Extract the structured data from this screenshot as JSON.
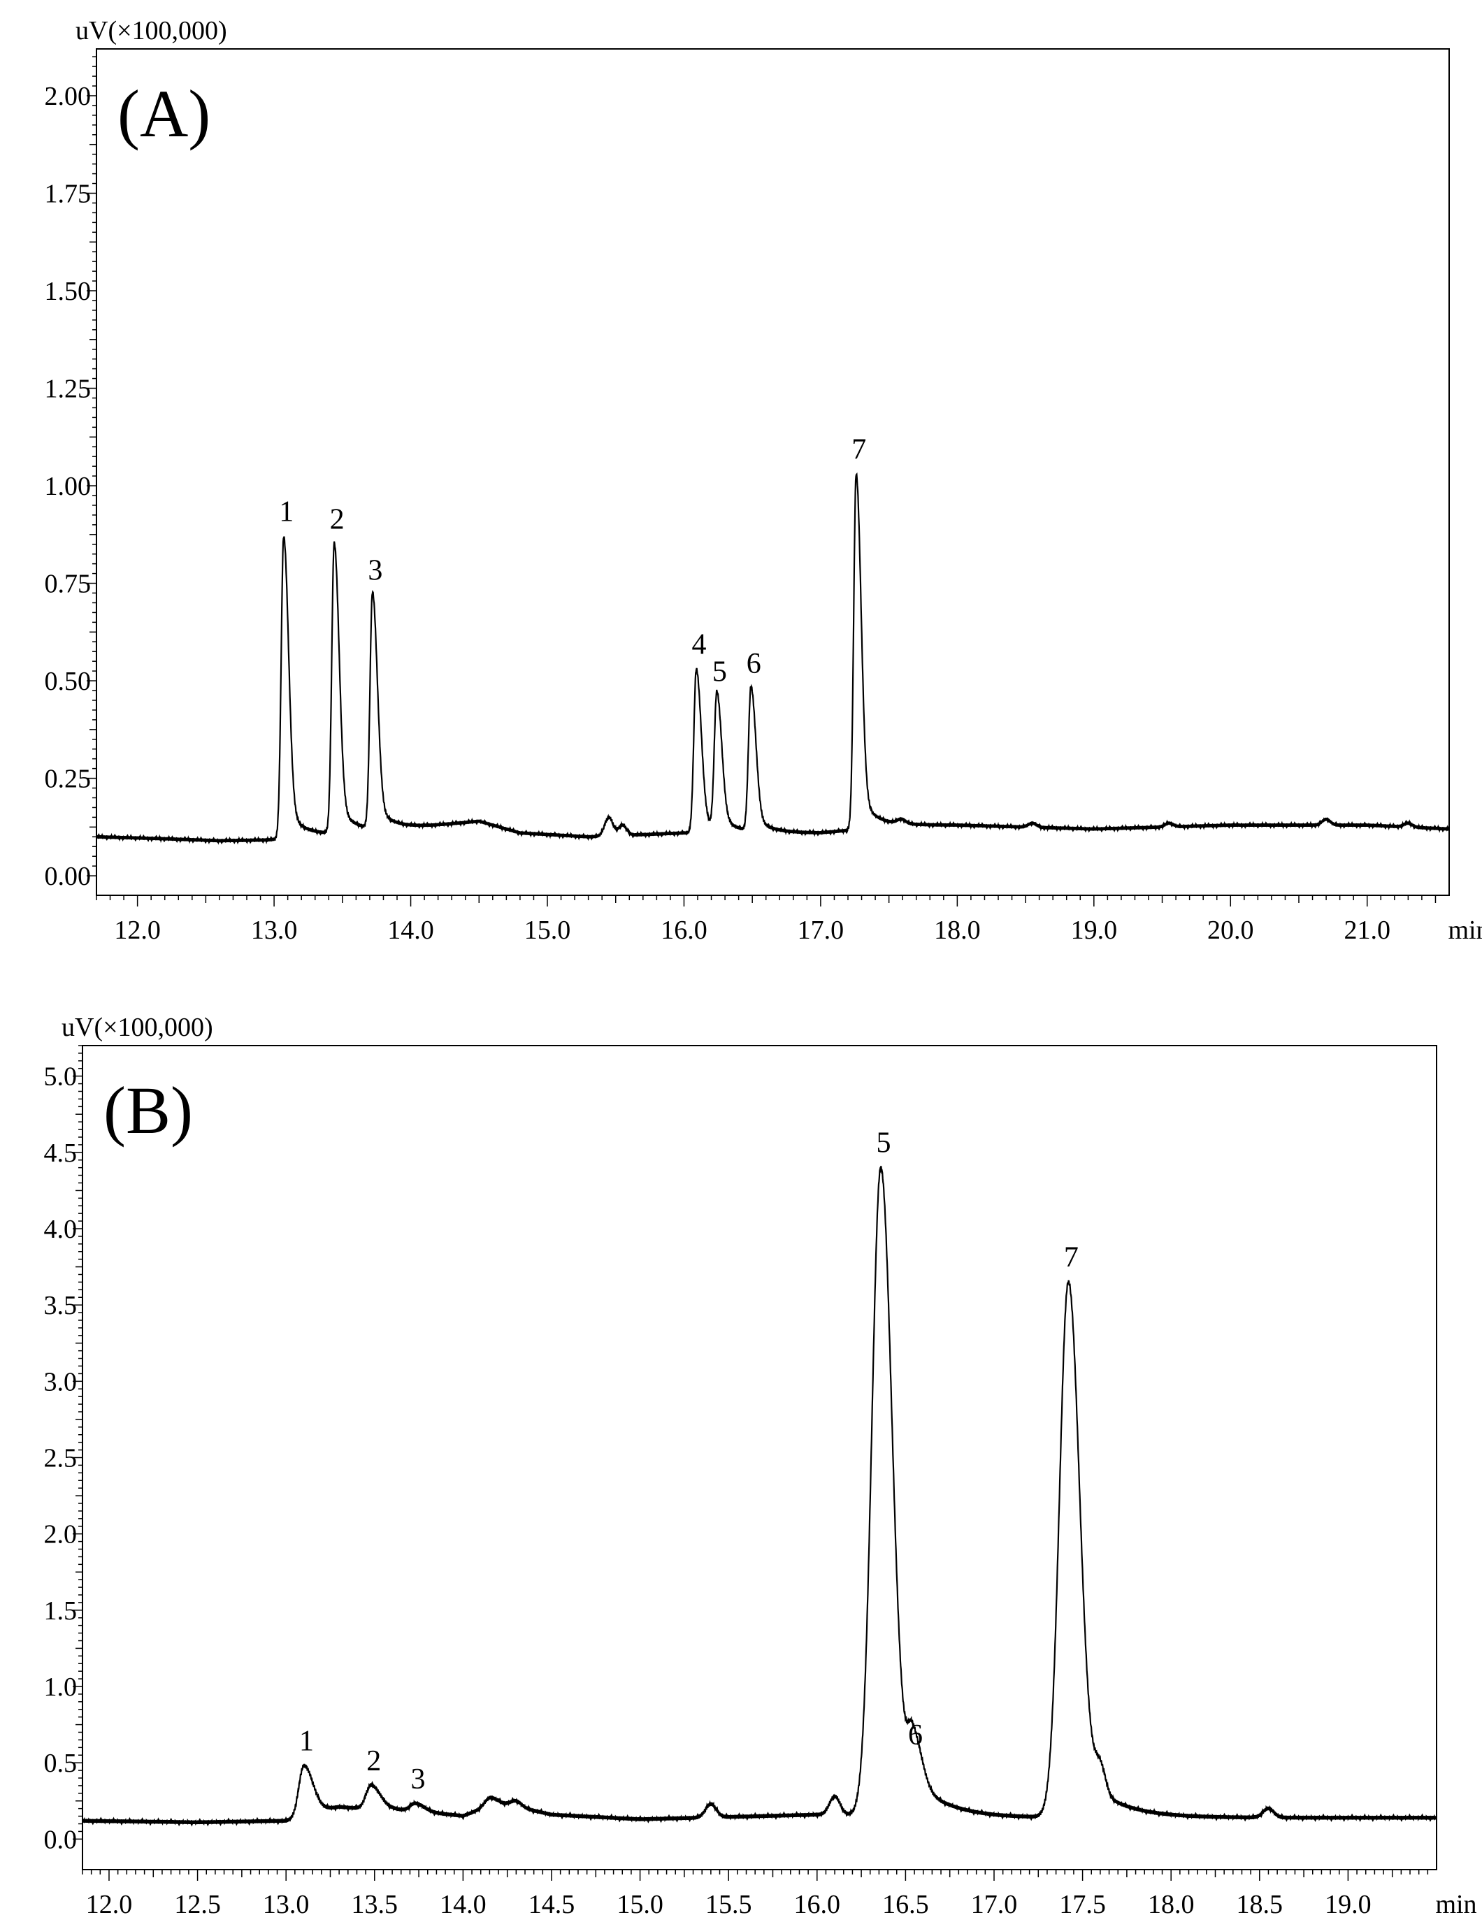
{
  "chart_data": [
    {
      "type": "line",
      "panel_label": "(A)",
      "ylabel": "uV(×100,000)",
      "xunit": "min",
      "xlim": [
        11.7,
        21.6
      ],
      "ylim": [
        -0.05,
        2.12
      ],
      "xticks": [
        "12.0",
        "13.0",
        "14.0",
        "15.0",
        "16.0",
        "17.0",
        "18.0",
        "19.0",
        "20.0",
        "21.0"
      ],
      "yticks": [
        "0.00",
        "0.25",
        "0.50",
        "0.75",
        "1.00",
        "1.25",
        "1.50",
        "1.75",
        "2.00"
      ],
      "baseline": [
        [
          11.7,
          0.1
        ],
        [
          12.2,
          0.095
        ],
        [
          12.6,
          0.09
        ],
        [
          12.95,
          0.092
        ],
        [
          14.2,
          0.13
        ],
        [
          14.5,
          0.14
        ],
        [
          14.8,
          0.11
        ],
        [
          15.3,
          0.1
        ],
        [
          16.0,
          0.11
        ],
        [
          17.0,
          0.11
        ],
        [
          17.6,
          0.13
        ],
        [
          18.0,
          0.13
        ],
        [
          19.0,
          0.12
        ],
        [
          20.0,
          0.13
        ],
        [
          21.0,
          0.13
        ],
        [
          21.6,
          0.12
        ]
      ],
      "peaks": [
        {
          "label": "1",
          "x": 13.07,
          "y": 0.87
        },
        {
          "label": "2",
          "x": 13.44,
          "y": 0.85
        },
        {
          "label": "3",
          "x": 13.72,
          "y": 0.72
        },
        {
          "label": "4",
          "x": 16.09,
          "y": 0.53
        },
        {
          "label": "5",
          "x": 16.24,
          "y": 0.46
        },
        {
          "label": "6",
          "x": 16.49,
          "y": 0.48
        },
        {
          "label": "7",
          "x": 17.26,
          "y": 1.03
        }
      ],
      "minor_peaks": [
        [
          15.45,
          0.15
        ],
        [
          15.55,
          0.13
        ],
        [
          17.59,
          0.14
        ],
        [
          18.55,
          0.135
        ],
        [
          19.55,
          0.135
        ],
        [
          20.7,
          0.145
        ],
        [
          21.3,
          0.135
        ]
      ]
    },
    {
      "type": "line",
      "panel_label": "(B)",
      "ylabel": "uV(×100,000)",
      "xunit": "min",
      "xlim": [
        11.85,
        19.5
      ],
      "ylim": [
        -0.2,
        5.2
      ],
      "xticks": [
        "12.0",
        "12.5",
        "13.0",
        "13.5",
        "14.0",
        "14.5",
        "15.0",
        "15.5",
        "16.0",
        "16.5",
        "17.0",
        "17.5",
        "18.0",
        "18.5",
        "19.0"
      ],
      "yticks": [
        "0.0",
        "0.5",
        "1.0",
        "1.5",
        "2.0",
        "2.5",
        "3.0",
        "3.5",
        "4.0",
        "4.5",
        "5.0"
      ],
      "baseline": [
        [
          11.85,
          0.12
        ],
        [
          12.5,
          0.11
        ],
        [
          13.0,
          0.12
        ],
        [
          13.3,
          0.2
        ],
        [
          13.6,
          0.19
        ],
        [
          14.0,
          0.15
        ],
        [
          14.2,
          0.24
        ],
        [
          14.5,
          0.16
        ],
        [
          15.0,
          0.13
        ],
        [
          16.0,
          0.16
        ],
        [
          17.0,
          0.14
        ],
        [
          18.0,
          0.14
        ],
        [
          19.5,
          0.14
        ]
      ],
      "peaks": [
        {
          "label": "1",
          "x": 13.1,
          "y": 0.48
        },
        {
          "label": "2",
          "x": 13.48,
          "y": 0.35
        },
        {
          "label": "3",
          "x": 13.73,
          "y": 0.23
        },
        {
          "label": "5",
          "x": 16.36,
          "y": 4.4
        },
        {
          "label": "6",
          "x": 16.54,
          "y": 0.52
        },
        {
          "label": "7",
          "x": 17.42,
          "y": 3.65
        }
      ],
      "minor_peaks": [
        [
          14.15,
          0.27
        ],
        [
          14.3,
          0.25
        ],
        [
          15.4,
          0.23
        ],
        [
          16.1,
          0.28
        ],
        [
          17.6,
          0.32
        ],
        [
          18.55,
          0.2
        ]
      ]
    }
  ]
}
